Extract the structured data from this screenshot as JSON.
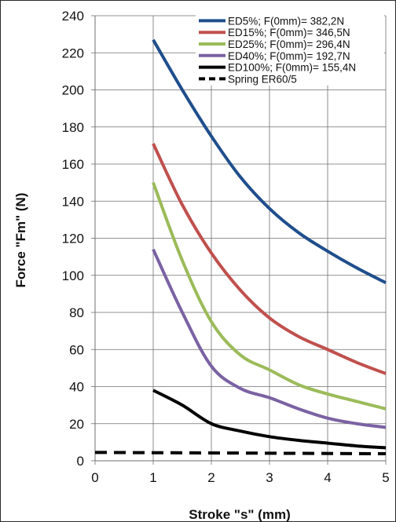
{
  "chart_data": {
    "type": "line",
    "title": "",
    "xlabel": "Stroke \"s\" (mm)",
    "ylabel": "Force \"Fm\" (N)",
    "xlim": [
      0,
      5
    ],
    "ylim": [
      0,
      240
    ],
    "xticks": [
      0,
      1,
      2,
      3,
      4,
      5
    ],
    "yticks": [
      0,
      20,
      40,
      60,
      80,
      100,
      120,
      140,
      160,
      180,
      200,
      220,
      240
    ],
    "grid": true,
    "legend_position": "top-right",
    "series": [
      {
        "name": "ED5%; F(0mm)= 382,2N",
        "color": "#1f4e8c",
        "style": "solid",
        "points": [
          [
            1,
            227
          ],
          [
            1.5,
            200
          ],
          [
            2,
            175
          ],
          [
            2.5,
            153
          ],
          [
            3,
            136
          ],
          [
            3.5,
            123
          ],
          [
            4,
            113
          ],
          [
            4.5,
            104
          ],
          [
            5,
            96
          ]
        ]
      },
      {
        "name": "ED15%; F(0mm)= 346,5N",
        "color": "#c0504d",
        "style": "solid",
        "points": [
          [
            1,
            171
          ],
          [
            1.5,
            138
          ],
          [
            2,
            112
          ],
          [
            2.5,
            92
          ],
          [
            3,
            77
          ],
          [
            3.5,
            67
          ],
          [
            4,
            60
          ],
          [
            4.5,
            53
          ],
          [
            5,
            47
          ]
        ]
      },
      {
        "name": "ED25%; F(0mm)= 296,4N",
        "color": "#9bbb59",
        "style": "solid",
        "points": [
          [
            1,
            150
          ],
          [
            1.5,
            108
          ],
          [
            2,
            75
          ],
          [
            2.5,
            57
          ],
          [
            3,
            49
          ],
          [
            3.5,
            41
          ],
          [
            4,
            36
          ],
          [
            4.5,
            32
          ],
          [
            5,
            28
          ]
        ]
      },
      {
        "name": "ED40%; F(0mm)= 192,7N",
        "color": "#7b62a3",
        "style": "solid",
        "points": [
          [
            1,
            114
          ],
          [
            1.5,
            80
          ],
          [
            2,
            51
          ],
          [
            2.5,
            39
          ],
          [
            3,
            34
          ],
          [
            3.5,
            28
          ],
          [
            4,
            23
          ],
          [
            4.5,
            20
          ],
          [
            5,
            18
          ]
        ]
      },
      {
        "name": "ED100%; F(0mm)= 155,4N",
        "color": "#000000",
        "style": "solid",
        "points": [
          [
            1,
            38
          ],
          [
            1.5,
            30
          ],
          [
            2,
            20
          ],
          [
            2.5,
            16
          ],
          [
            3,
            13
          ],
          [
            3.5,
            11
          ],
          [
            4,
            9.5
          ],
          [
            4.5,
            8
          ],
          [
            5,
            7
          ]
        ]
      },
      {
        "name": "Spring ER60/5",
        "color": "#000000",
        "style": "dashed",
        "points": [
          [
            0,
            4.5
          ],
          [
            5,
            3.8
          ]
        ]
      }
    ]
  }
}
